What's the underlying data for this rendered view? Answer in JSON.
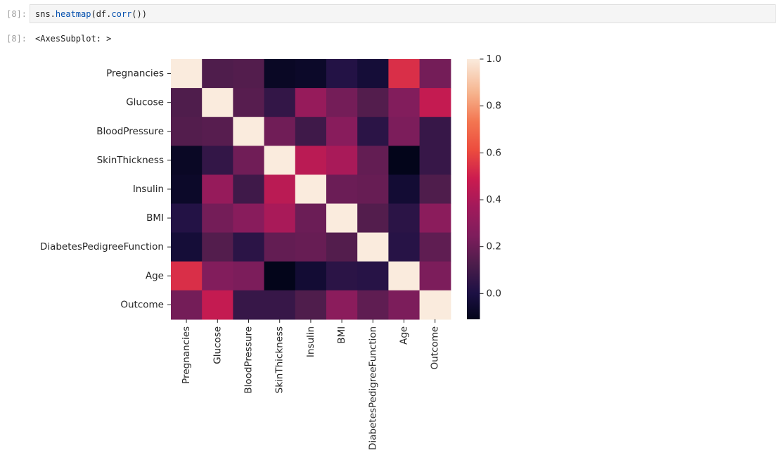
{
  "cell": {
    "in_prompt": "[8]:",
    "code": {
      "prefix": "sns.",
      "fn1": "heatmap",
      "mid": "(df.",
      "fn2": "corr",
      "suffix": "())"
    },
    "out_prompt": "[8]:",
    "output_text": "<AxesSubplot: >"
  },
  "chart_data": {
    "type": "heatmap",
    "title": "",
    "xlabel": "",
    "ylabel": "",
    "categories": [
      "Pregnancies",
      "Glucose",
      "BloodPressure",
      "SkinThickness",
      "Insulin",
      "BMI",
      "DiabetesPedigreeFunction",
      "Age",
      "Outcome"
    ],
    "matrix": [
      [
        1.0,
        0.13,
        0.14,
        -0.08,
        -0.07,
        0.02,
        -0.03,
        0.54,
        0.22
      ],
      [
        0.13,
        1.0,
        0.15,
        0.06,
        0.33,
        0.22,
        0.14,
        0.26,
        0.47
      ],
      [
        0.14,
        0.15,
        1.0,
        0.21,
        0.09,
        0.28,
        0.04,
        0.24,
        0.07
      ],
      [
        -0.08,
        0.06,
        0.21,
        1.0,
        0.44,
        0.39,
        0.18,
        -0.11,
        0.07
      ],
      [
        -0.07,
        0.33,
        0.09,
        0.44,
        1.0,
        0.2,
        0.19,
        -0.04,
        0.13
      ],
      [
        0.02,
        0.22,
        0.28,
        0.39,
        0.2,
        1.0,
        0.14,
        0.04,
        0.29
      ],
      [
        -0.03,
        0.14,
        0.04,
        0.18,
        0.19,
        0.14,
        1.0,
        0.03,
        0.17
      ],
      [
        0.54,
        0.26,
        0.24,
        -0.11,
        -0.04,
        0.04,
        0.03,
        1.0,
        0.24
      ],
      [
        0.22,
        0.47,
        0.07,
        0.07,
        0.13,
        0.29,
        0.17,
        0.24,
        1.0
      ]
    ],
    "colorbar": {
      "vmin": -0.11,
      "vmax": 1.0,
      "ticks": [
        0.0,
        0.2,
        0.4,
        0.6,
        0.8,
        1.0
      ],
      "tick_labels": [
        "0.0",
        "0.2",
        "0.4",
        "0.6",
        "0.8",
        "1.0"
      ],
      "colormap": "rocket"
    },
    "grid": false
  }
}
